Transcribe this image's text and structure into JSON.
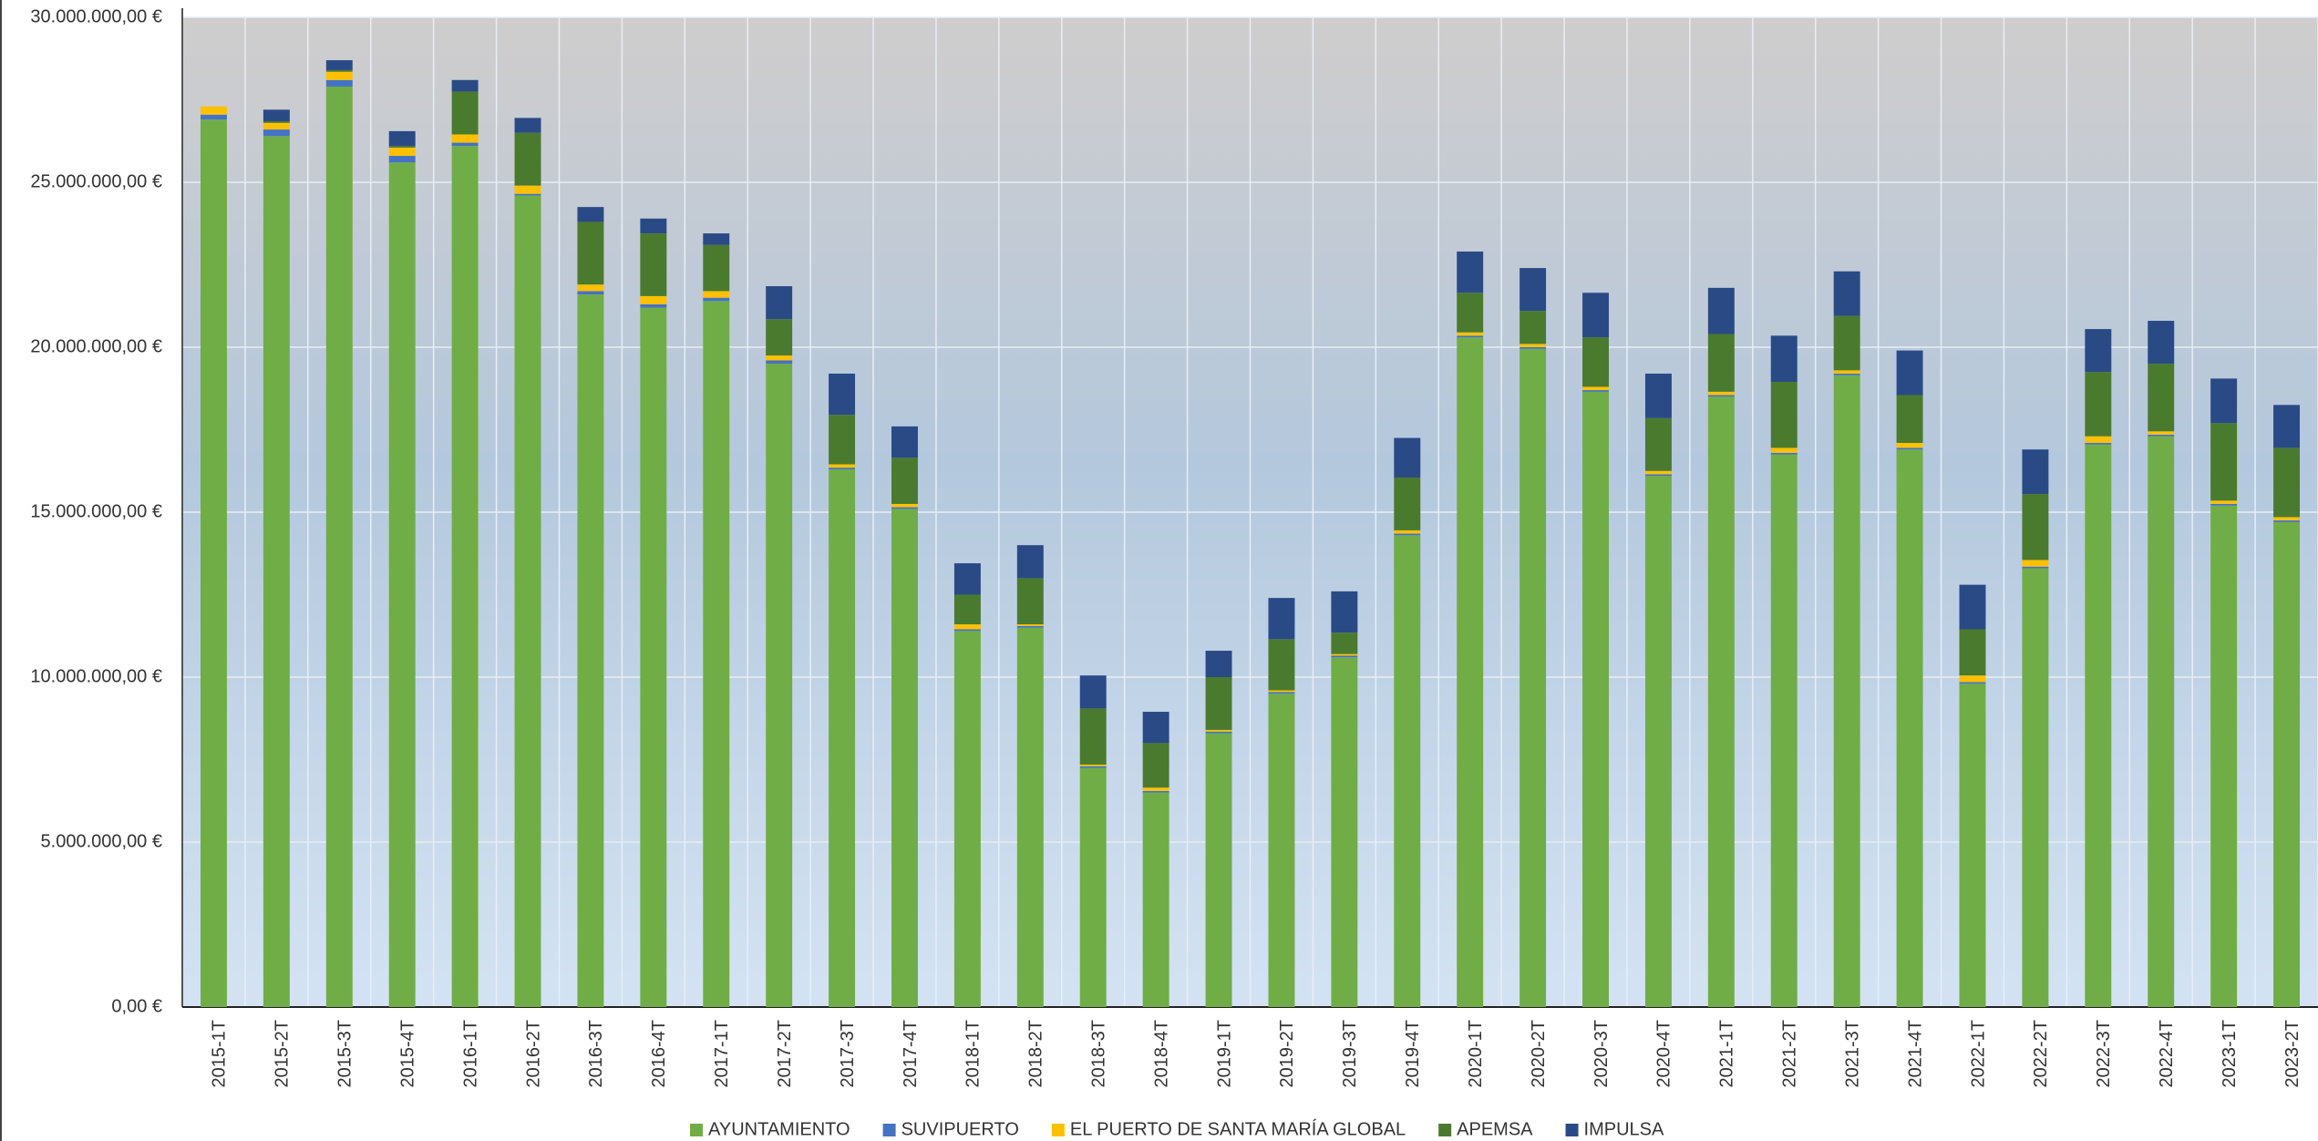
{
  "chart_data": {
    "type": "stacked_bar",
    "categories": [
      "2015-1T",
      "2015-2T",
      "2015-3T",
      "2015-4T",
      "2016-1T",
      "2016-2T",
      "2016-3T",
      "2016-4T",
      "2017-1T",
      "2017-2T",
      "2017-3T",
      "2017-4T",
      "2018-1T",
      "2018-2T",
      "2018-3T",
      "2018-4T",
      "2019-1T",
      "2019-2T",
      "2019-3T",
      "2019-4T",
      "2020-1T",
      "2020-2T",
      "2020-3T",
      "2020-4T",
      "2021-1T",
      "2021-2T",
      "2021-3T",
      "2021-4T",
      "2022-1T",
      "2022-2T",
      "2022-3T",
      "2022-4T",
      "2023-1T",
      "2023-2T"
    ],
    "series": [
      {
        "name": "AYUNTAMIENTO",
        "color": "#70ad47",
        "values": [
          26900000,
          26400000,
          27900000,
          25600000,
          26100000,
          24600000,
          21600000,
          21200000,
          21400000,
          19500000,
          16300000,
          15100000,
          11400000,
          11500000,
          7250000,
          6500000,
          8300000,
          9500000,
          10600000,
          14300000,
          20300000,
          19950000,
          18650000,
          16100000,
          18500000,
          16750000,
          19150000,
          16900000,
          9800000,
          13300000,
          17050000,
          17300000,
          15200000,
          14700000
        ]
      },
      {
        "name": "SUVIPUERTO",
        "color": "#4472c4",
        "values": [
          150000,
          200000,
          200000,
          200000,
          100000,
          50000,
          100000,
          100000,
          100000,
          100000,
          50000,
          50000,
          50000,
          50000,
          50000,
          50000,
          50000,
          50000,
          50000,
          50000,
          50000,
          50000,
          50000,
          50000,
          50000,
          50000,
          50000,
          50000,
          50000,
          50000,
          50000,
          50000,
          50000,
          50000
        ]
      },
      {
        "name": "EL PUERTO DE SANTA MARÍA GLOBAL",
        "color": "#ffc000",
        "values": [
          250000,
          200000,
          250000,
          250000,
          250000,
          250000,
          200000,
          250000,
          200000,
          150000,
          100000,
          100000,
          150000,
          50000,
          50000,
          100000,
          50000,
          50000,
          50000,
          100000,
          100000,
          100000,
          100000,
          100000,
          100000,
          150000,
          100000,
          150000,
          200000,
          200000,
          200000,
          100000,
          100000,
          100000
        ]
      },
      {
        "name": "APEMSA",
        "color": "#4a7a2e",
        "values": [
          0,
          50000,
          50000,
          50000,
          1300000,
          1600000,
          1900000,
          1900000,
          1400000,
          1100000,
          1500000,
          1400000,
          900000,
          1400000,
          1700000,
          1350000,
          1600000,
          1550000,
          650000,
          1600000,
          1200000,
          1000000,
          1500000,
          1600000,
          1750000,
          2000000,
          1650000,
          1450000,
          1400000,
          2000000,
          1950000,
          2050000,
          2350000,
          2100000
        ]
      },
      {
        "name": "IMPULSA",
        "color": "#2a4a86",
        "values": [
          0,
          350000,
          300000,
          450000,
          350000,
          450000,
          450000,
          450000,
          350000,
          1000000,
          1250000,
          950000,
          950000,
          1000000,
          1000000,
          950000,
          800000,
          1250000,
          1250000,
          1200000,
          1250000,
          1300000,
          1350000,
          1350000,
          1400000,
          1400000,
          1350000,
          1350000,
          1350000,
          1350000,
          1300000,
          1300000,
          1350000,
          1300000
        ]
      }
    ],
    "ylim": [
      0,
      30000000
    ],
    "yticks": [
      {
        "value": 0,
        "label": "0,00 €"
      },
      {
        "value": 5000000,
        "label": "5.000.000,00 €"
      },
      {
        "value": 10000000,
        "label": "10.000.000,00 €"
      },
      {
        "value": 15000000,
        "label": "15.000.000,00 €"
      },
      {
        "value": 20000000,
        "label": "20.000.000,00 €"
      },
      {
        "value": 25000000,
        "label": "25.000.000,00 €"
      },
      {
        "value": 30000000,
        "label": "30.000.000,00 €"
      }
    ],
    "grid": true
  }
}
